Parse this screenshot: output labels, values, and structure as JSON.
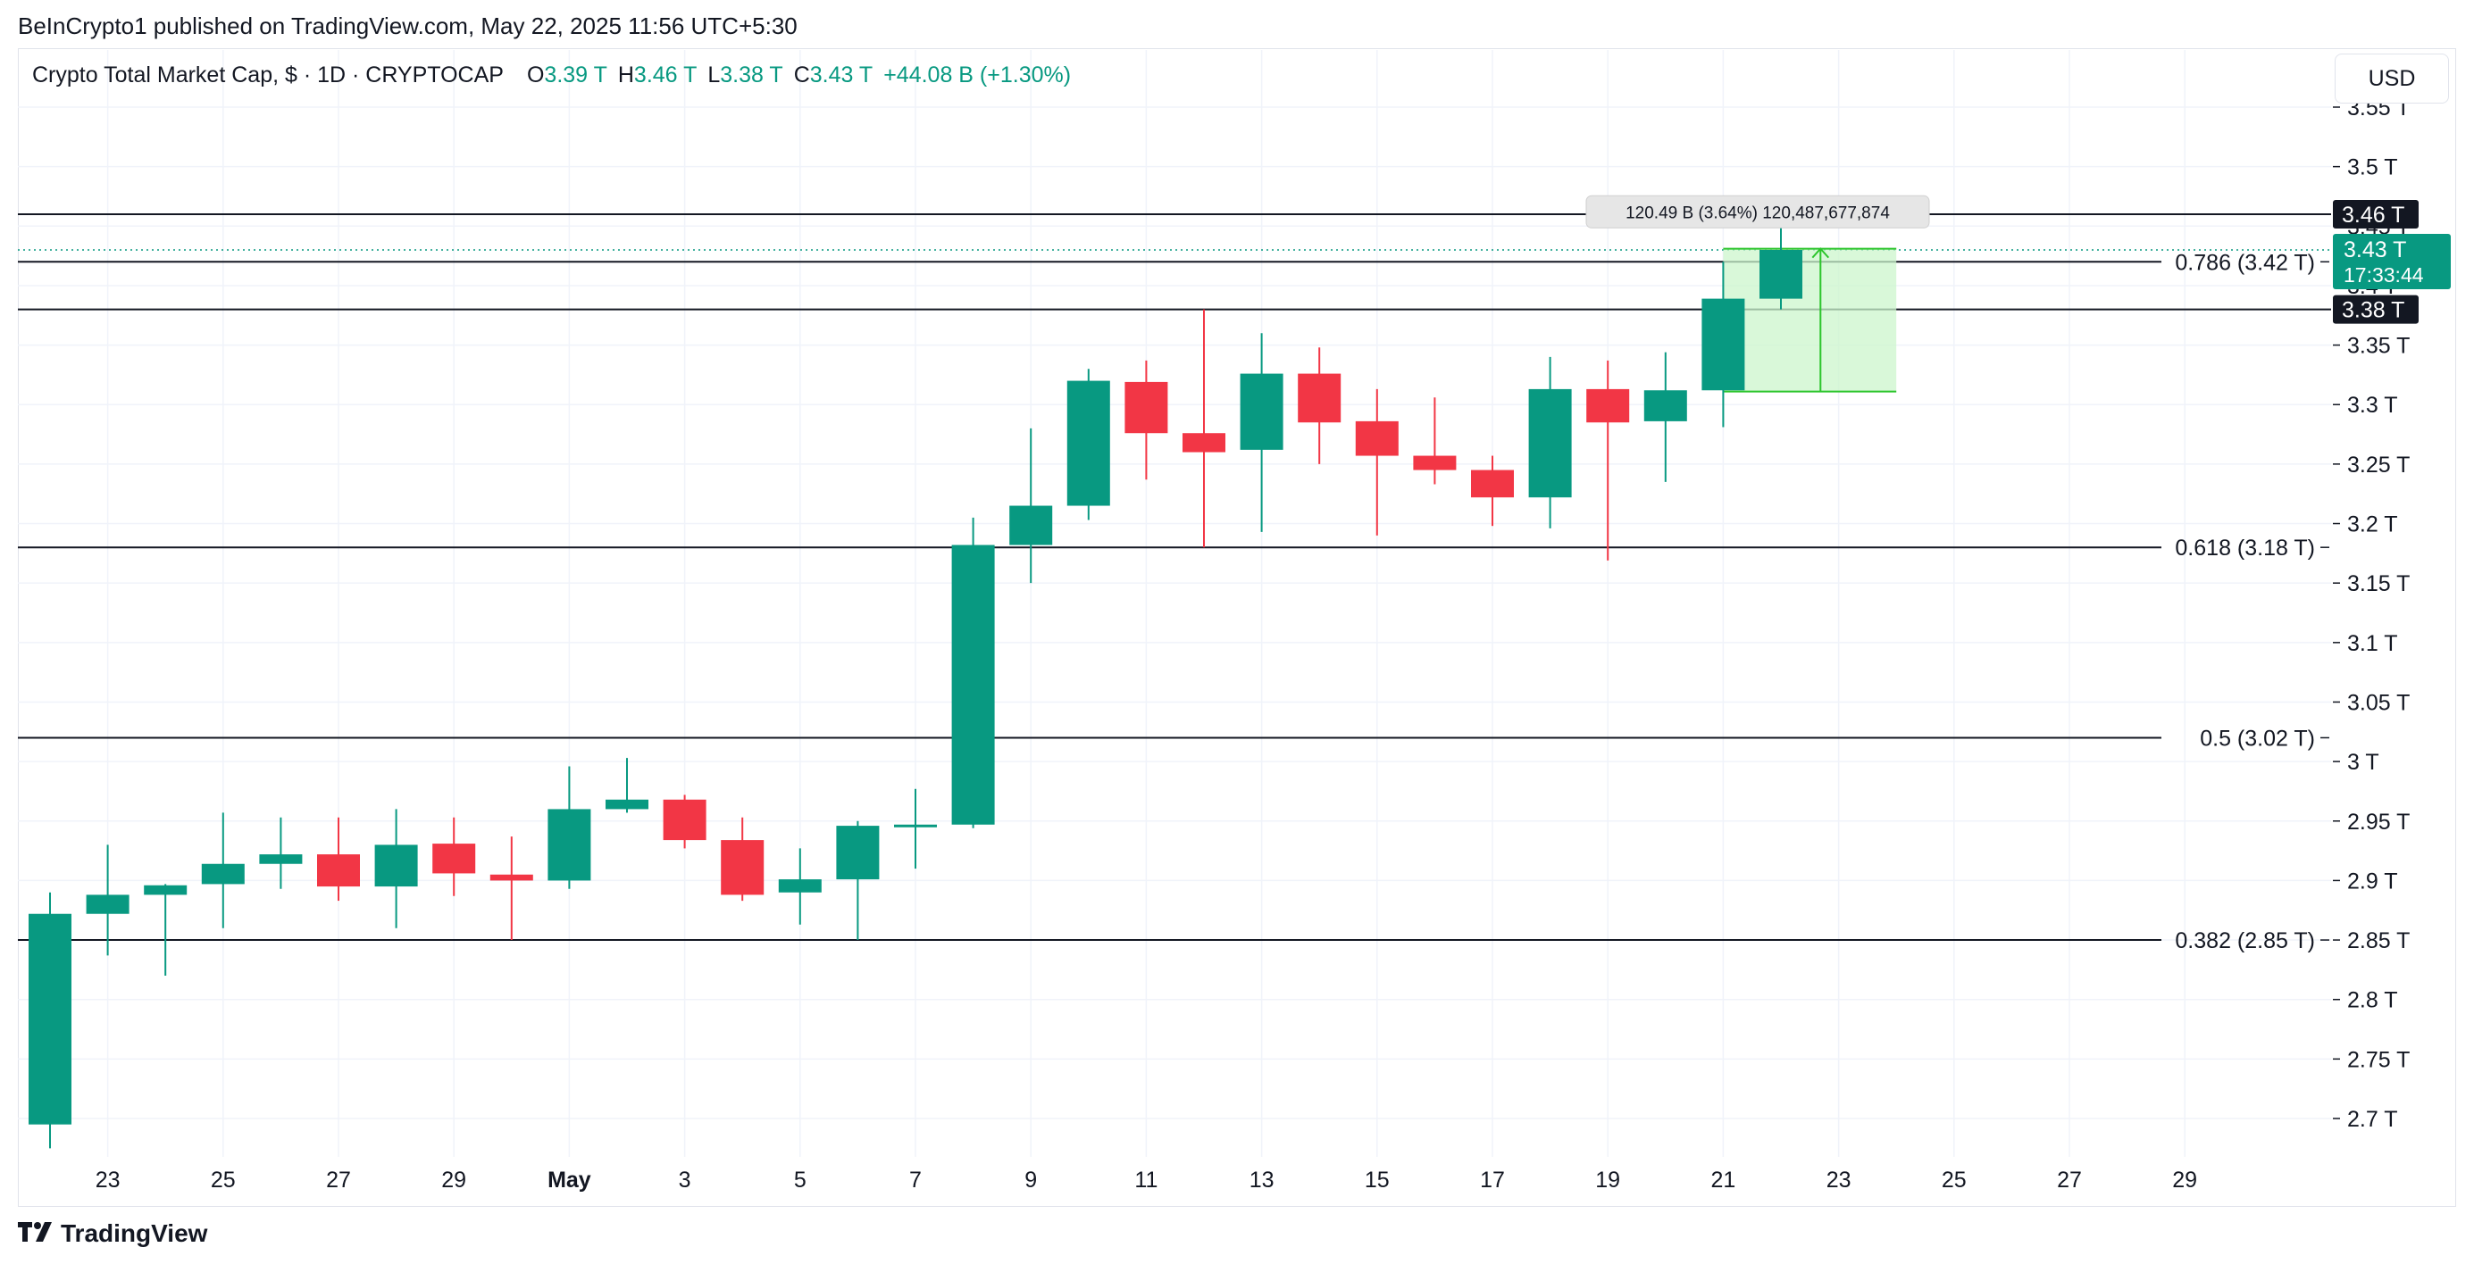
{
  "header": {
    "publisher_text": "BeInCrypto1 published on TradingView.com, May 22, 2025 11:56 UTC+5:30"
  },
  "legend": {
    "symbol": "Crypto Total Market Cap, $ · 1D · CRYPTOCAP",
    "o_label": "O",
    "o_value": "3.39 T",
    "h_label": "H",
    "h_value": "3.46 T",
    "l_label": "L",
    "l_value": "3.38 T",
    "c_label": "C",
    "c_value": "3.43 T",
    "change": "+44.08 B (+1.30%)"
  },
  "currency_button": "USD",
  "footer": {
    "logo_text": "TradingView"
  },
  "colors": {
    "up": "#089981",
    "down": "#f23645",
    "range_fill": "#ccf5cc",
    "range_stroke": "#2cc52c"
  },
  "chart_data": {
    "type": "candlestick",
    "title": "Crypto Total Market Cap, $ · 1D · CRYPTOCAP",
    "x_tick_labels": [
      "23",
      "25",
      "27",
      "29",
      "May",
      "3",
      "5",
      "7",
      "9",
      "11",
      "13",
      "15",
      "17",
      "19",
      "21",
      "23",
      "25",
      "27",
      "29"
    ],
    "y_tick_labels": [
      "3.55 T",
      "3.5 T",
      "3.45 T",
      "3.4 T",
      "3.35 T",
      "3.3 T",
      "3.25 T",
      "3.2 T",
      "3.15 T",
      "3.1 T",
      "3.05 T",
      "3 T",
      "2.95 T",
      "2.9 T",
      "2.85 T",
      "2.8 T",
      "2.75 T",
      "2.7 T"
    ],
    "ylim": [
      2.67,
      3.555
    ],
    "y_unit": "T USD",
    "candles": [
      {
        "date": "2025-04-22",
        "o": 2.695,
        "h": 2.89,
        "l": 2.675,
        "c": 2.872
      },
      {
        "date": "2025-04-23",
        "o": 2.872,
        "h": 2.93,
        "l": 2.837,
        "c": 2.888
      },
      {
        "date": "2025-04-24",
        "o": 2.888,
        "h": 2.897,
        "l": 2.82,
        "c": 2.896
      },
      {
        "date": "2025-04-25",
        "o": 2.897,
        "h": 2.957,
        "l": 2.86,
        "c": 2.914
      },
      {
        "date": "2025-04-26",
        "o": 2.914,
        "h": 2.953,
        "l": 2.893,
        "c": 2.922
      },
      {
        "date": "2025-04-27",
        "o": 2.922,
        "h": 2.953,
        "l": 2.883,
        "c": 2.895
      },
      {
        "date": "2025-04-28",
        "o": 2.895,
        "h": 2.96,
        "l": 2.86,
        "c": 2.93
      },
      {
        "date": "2025-04-29",
        "o": 2.931,
        "h": 2.953,
        "l": 2.887,
        "c": 2.906
      },
      {
        "date": "2025-04-30",
        "o": 2.905,
        "h": 2.937,
        "l": 2.85,
        "c": 2.9
      },
      {
        "date": "2025-05-01",
        "o": 2.9,
        "h": 2.996,
        "l": 2.893,
        "c": 2.96
      },
      {
        "date": "2025-05-02",
        "o": 2.96,
        "h": 3.003,
        "l": 2.957,
        "c": 2.968
      },
      {
        "date": "2025-05-03",
        "o": 2.968,
        "h": 2.972,
        "l": 2.927,
        "c": 2.934
      },
      {
        "date": "2025-05-04",
        "o": 2.934,
        "h": 2.953,
        "l": 2.883,
        "c": 2.888
      },
      {
        "date": "2025-05-05",
        "o": 2.89,
        "h": 2.927,
        "l": 2.863,
        "c": 2.901
      },
      {
        "date": "2025-05-06",
        "o": 2.901,
        "h": 2.95,
        "l": 2.85,
        "c": 2.946
      },
      {
        "date": "2025-05-07",
        "o": 2.946,
        "h": 2.977,
        "l": 2.91,
        "c": 2.947
      },
      {
        "date": "2025-05-08",
        "o": 2.947,
        "h": 3.205,
        "l": 2.944,
        "c": 3.182
      },
      {
        "date": "2025-05-09",
        "o": 3.182,
        "h": 3.28,
        "l": 3.15,
        "c": 3.215
      },
      {
        "date": "2025-05-10",
        "o": 3.215,
        "h": 3.33,
        "l": 3.203,
        "c": 3.32
      },
      {
        "date": "2025-05-11",
        "o": 3.319,
        "h": 3.337,
        "l": 3.237,
        "c": 3.276
      },
      {
        "date": "2025-05-12",
        "o": 3.276,
        "h": 3.38,
        "l": 3.18,
        "c": 3.26
      },
      {
        "date": "2025-05-13",
        "o": 3.262,
        "h": 3.36,
        "l": 3.193,
        "c": 3.326
      },
      {
        "date": "2025-05-14",
        "o": 3.326,
        "h": 3.348,
        "l": 3.25,
        "c": 3.285
      },
      {
        "date": "2025-05-15",
        "o": 3.286,
        "h": 3.313,
        "l": 3.19,
        "c": 3.257
      },
      {
        "date": "2025-05-16",
        "o": 3.257,
        "h": 3.306,
        "l": 3.233,
        "c": 3.245
      },
      {
        "date": "2025-05-17",
        "o": 3.245,
        "h": 3.257,
        "l": 3.198,
        "c": 3.222
      },
      {
        "date": "2025-05-18",
        "o": 3.222,
        "h": 3.34,
        "l": 3.196,
        "c": 3.313
      },
      {
        "date": "2025-05-19",
        "o": 3.313,
        "h": 3.337,
        "l": 3.169,
        "c": 3.285
      },
      {
        "date": "2025-05-20",
        "o": 3.286,
        "h": 3.344,
        "l": 3.235,
        "c": 3.312
      },
      {
        "date": "2025-05-21",
        "o": 3.312,
        "h": 3.42,
        "l": 3.281,
        "c": 3.389
      },
      {
        "date": "2025-05-22",
        "o": 3.389,
        "h": 3.46,
        "l": 3.38,
        "c": 3.43
      }
    ],
    "fib_levels": [
      {
        "value": 3.42,
        "label": "0.786 (3.42 T)"
      },
      {
        "value": 3.18,
        "label": "0.618 (3.18 T)"
      },
      {
        "value": 3.02,
        "label": "0.5 (3.02 T)"
      },
      {
        "value": 2.85,
        "label": "0.382 (2.85 T)"
      }
    ],
    "hlines": [
      {
        "value": 3.46,
        "label": "3.46 T"
      },
      {
        "value": 3.38,
        "label": "3.38 T"
      }
    ],
    "last_price": {
      "value": 3.43,
      "label": "3.43 T",
      "countdown": "17:33:44"
    },
    "range_tool": {
      "from_date": "2025-05-21",
      "to_date": "2025-05-24",
      "from_value": 3.311,
      "to_value": 3.431,
      "label": "120.49 B (3.64%) 120,487,677,874"
    }
  }
}
